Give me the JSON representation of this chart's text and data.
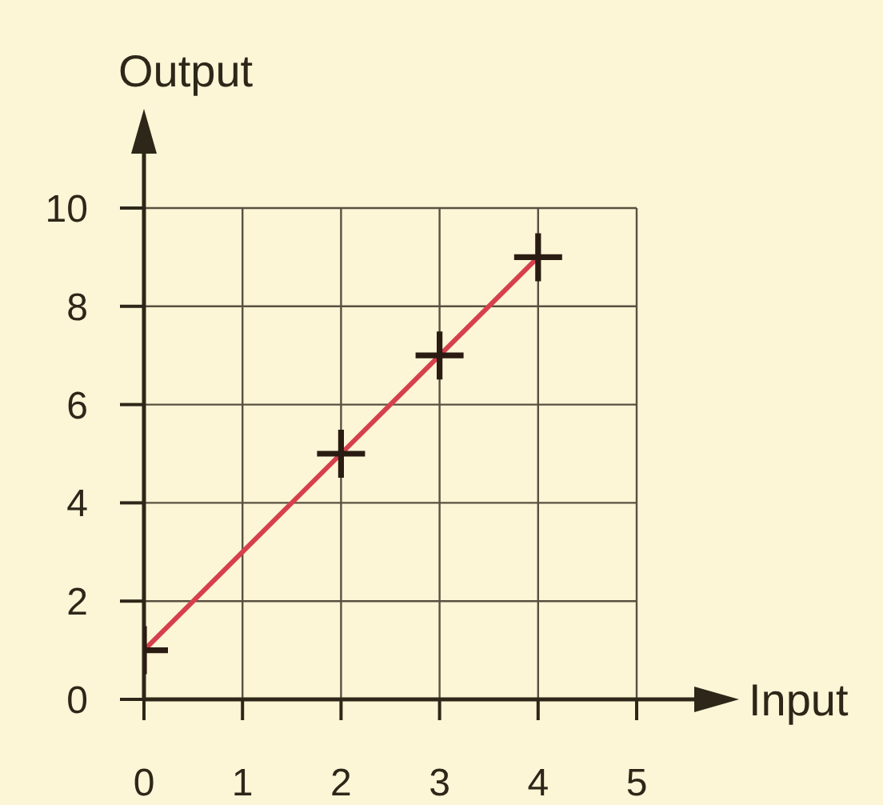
{
  "chart_data": {
    "type": "line",
    "xlabel": "Input",
    "ylabel": "Output",
    "x": [
      0,
      2,
      3,
      4
    ],
    "series": [
      {
        "color": "#d6404c",
        "values": [
          1,
          5,
          7,
          9
        ],
        "marker": "none"
      },
      {
        "type": "scatter",
        "color": "#2a1c12",
        "values": [
          1,
          5,
          7,
          9
        ],
        "marker": "cross"
      }
    ],
    "xlim": [
      0,
      5
    ],
    "xticks": [
      0,
      1,
      2,
      3,
      4,
      5
    ],
    "ylim": [
      0,
      10
    ],
    "yticks": [
      0,
      2,
      4,
      6,
      8,
      10
    ],
    "grid": true,
    "line_style": "solid"
  }
}
